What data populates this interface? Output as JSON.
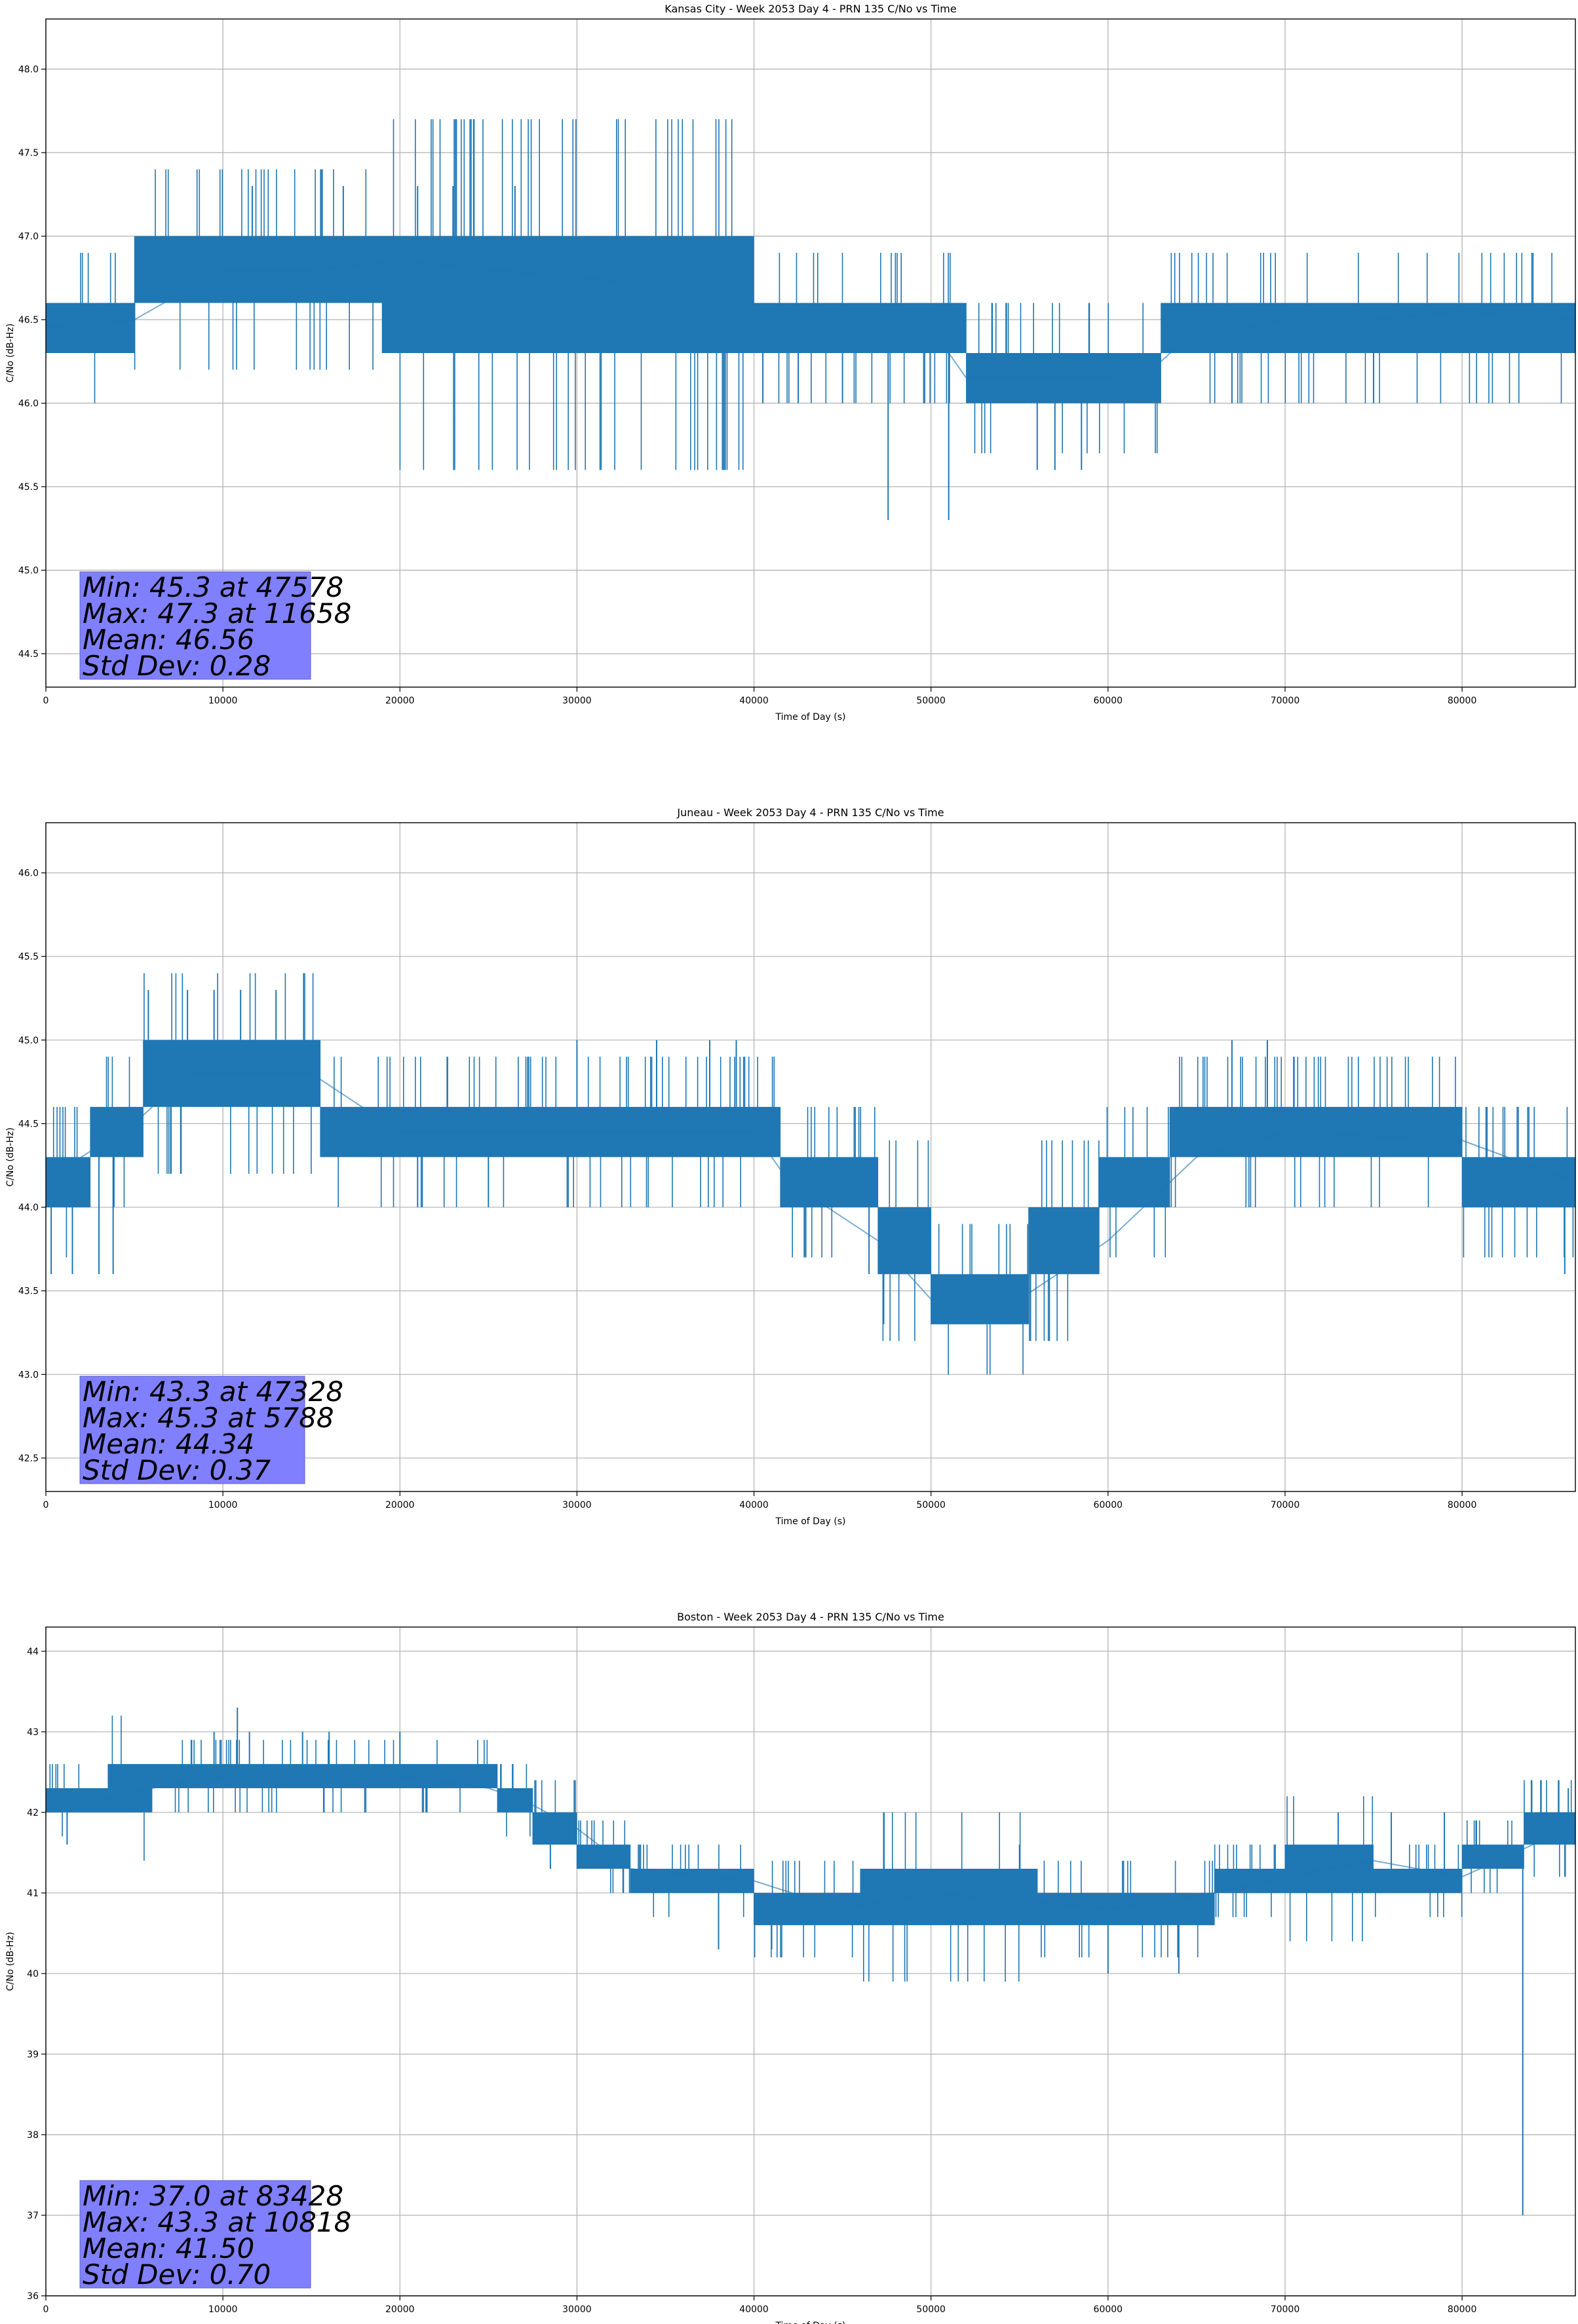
{
  "chart_data": [
    {
      "type": "line",
      "title": "Kansas City - Week 2053 Day 4 - PRN 135 C/No vs Time",
      "xlabel": "Time of Day (s)",
      "ylabel": "C/No (dB-Hz)",
      "xlim": [
        0,
        86400
      ],
      "ylim": [
        44.3,
        48.3
      ],
      "xticks": [
        0,
        10000,
        20000,
        30000,
        40000,
        50000,
        60000,
        70000,
        80000
      ],
      "yticks": [
        "44.5",
        "45.0",
        "45.5",
        "46.0",
        "46.5",
        "47.0",
        "47.5",
        "48.0"
      ],
      "grid": true,
      "color": "#1f77b4",
      "series": [
        {
          "name": "C/No",
          "x": [
            0,
            5000,
            10000,
            15000,
            20000,
            25000,
            30000,
            35000,
            40000,
            45000,
            50000,
            52000,
            55000,
            60000,
            63000,
            65000,
            68000,
            70000,
            75000,
            80000,
            86400
          ],
          "y": [
            46.45,
            46.5,
            46.8,
            46.8,
            46.85,
            46.8,
            46.75,
            46.7,
            46.45,
            46.45,
            46.45,
            46.15,
            46.15,
            46.15,
            46.25,
            46.45,
            46.45,
            46.5,
            46.5,
            46.55,
            46.5
          ]
        }
      ],
      "band": {
        "x": [
          0,
          5000,
          5001,
          19000,
          19001,
          40000,
          40001,
          52000,
          52001,
          63000,
          63001,
          86400
        ],
        "lo": [
          46.3,
          46.3,
          46.6,
          46.6,
          46.3,
          46.3,
          46.3,
          46.3,
          46.0,
          46.0,
          46.3,
          46.3
        ],
        "hi": [
          46.6,
          46.6,
          47.0,
          47.0,
          47.0,
          47.0,
          46.6,
          46.6,
          46.3,
          46.3,
          46.6,
          46.6
        ]
      },
      "spikes": [
        [
          47578,
          45.3
        ],
        [
          11658,
          47.3
        ],
        [
          51000,
          45.3
        ],
        [
          56000,
          45.6
        ],
        [
          57000,
          45.6
        ],
        [
          58500,
          45.6
        ],
        [
          21000,
          47.3
        ],
        [
          23000,
          47.3
        ],
        [
          26500,
          47.3
        ],
        [
          16800,
          47.3
        ],
        [
          40500,
          46.0
        ],
        [
          42500,
          46.0
        ],
        [
          45000,
          46.0
        ],
        [
          67000,
          46.0
        ],
        [
          75000,
          46.0
        ],
        [
          37000,
          46.3
        ],
        [
          29000,
          46.3
        ]
      ],
      "stats": [
        "Min: 45.3 at 47578",
        "Max: 47.3 at 11658",
        "Mean: 46.56",
        "Std Dev: 0.28"
      ]
    },
    {
      "type": "line",
      "title": "Juneau - Week 2053 Day 4 - PRN 135 C/No vs Time",
      "xlabel": "Time of Day (s)",
      "ylabel": "C/No (dB-Hz)",
      "xlim": [
        0,
        86400
      ],
      "ylim": [
        42.3,
        46.3
      ],
      "xticks": [
        0,
        10000,
        20000,
        30000,
        40000,
        50000,
        60000,
        70000,
        80000
      ],
      "yticks": [
        "42.5",
        "43.0",
        "43.5",
        "44.0",
        "44.5",
        "45.0",
        "45.5",
        "46.0"
      ],
      "grid": true,
      "color": "#1f77b4",
      "series": [
        {
          "name": "C/No",
          "x": [
            0,
            2000,
            5000,
            8000,
            15000,
            20000,
            30000,
            40000,
            42000,
            47000,
            50000,
            55000,
            60000,
            65000,
            70000,
            80000,
            86400
          ],
          "y": [
            44.15,
            44.3,
            44.5,
            44.8,
            44.8,
            44.45,
            44.45,
            44.45,
            44.15,
            43.8,
            43.45,
            43.45,
            43.8,
            44.3,
            44.45,
            44.4,
            44.15
          ]
        }
      ],
      "band": {
        "x": [
          0,
          2500,
          2501,
          5500,
          5501,
          15500,
          15501,
          41500,
          41501,
          47000,
          47001,
          50000,
          50001,
          55500,
          55501,
          59500,
          59501,
          63500,
          63501,
          80000,
          80001,
          86400
        ],
        "lo": [
          44.0,
          44.0,
          44.3,
          44.3,
          44.6,
          44.6,
          44.3,
          44.3,
          44.0,
          44.0,
          43.6,
          43.6,
          43.3,
          43.3,
          43.6,
          43.6,
          44.0,
          44.0,
          44.3,
          44.3,
          44.0,
          44.0
        ],
        "hi": [
          44.3,
          44.3,
          44.6,
          44.6,
          45.0,
          45.0,
          44.6,
          44.6,
          44.3,
          44.3,
          44.0,
          44.0,
          43.6,
          43.6,
          44.0,
          44.0,
          44.3,
          44.3,
          44.6,
          44.6,
          44.3,
          44.3
        ]
      },
      "spikes": [
        [
          47328,
          43.3
        ],
        [
          5788,
          45.3
        ],
        [
          8000,
          45.3
        ],
        [
          9500,
          45.3
        ],
        [
          11000,
          45.3
        ],
        [
          13000,
          45.3
        ],
        [
          300,
          43.6
        ],
        [
          1500,
          43.6
        ],
        [
          3000,
          43.6
        ],
        [
          3800,
          43.6
        ],
        [
          85800,
          43.6
        ],
        [
          46500,
          43.6
        ],
        [
          30000,
          45.0
        ],
        [
          34500,
          45.0
        ],
        [
          37500,
          45.0
        ],
        [
          39000,
          45.0
        ],
        [
          67000,
          45.0
        ],
        [
          69000,
          45.0
        ],
        [
          21000,
          44.0
        ],
        [
          25000,
          44.0
        ]
      ],
      "stats": [
        "Min: 43.3 at 47328",
        "Max: 45.3 at 5788",
        "Mean: 44.34",
        "Std Dev: 0.37"
      ]
    },
    {
      "type": "line",
      "title": "Boston - Week 2053 Day 4 - PRN 135 C/No vs Time",
      "xlabel": "Time of Day (s)",
      "ylabel": "C/No (dB-Hz)",
      "xlim": [
        0,
        86400
      ],
      "ylim": [
        36,
        44.3
      ],
      "xticks": [
        0,
        10000,
        20000,
        30000,
        40000,
        50000,
        60000,
        70000,
        80000
      ],
      "yticks": [
        "36",
        "37",
        "38",
        "39",
        "40",
        "41",
        "42",
        "43",
        "44"
      ],
      "grid": true,
      "color": "#1f77b4",
      "series": [
        {
          "name": "C/No",
          "x": [
            0,
            3000,
            6000,
            10000,
            20000,
            25000,
            27000,
            30000,
            33000,
            40000,
            45000,
            50000,
            60000,
            66000,
            70000,
            75000,
            80000,
            84000,
            86400
          ],
          "y": [
            42.15,
            42.15,
            42.3,
            42.45,
            42.45,
            42.3,
            42.15,
            41.8,
            41.3,
            41.15,
            40.8,
            41.0,
            40.8,
            41.0,
            41.2,
            41.4,
            41.2,
            41.6,
            42.0
          ]
        }
      ],
      "band": {
        "x": [
          0,
          3500,
          3501,
          6000,
          6001,
          22500,
          22501,
          25500,
          25501,
          27500,
          27501,
          30000,
          30001,
          33000,
          33001,
          40000,
          40001,
          46000,
          46001,
          50000,
          50001,
          56000,
          56001,
          66000,
          66001,
          70000,
          70001,
          75000,
          75001,
          80000,
          80001,
          83500,
          83501,
          86400
        ],
        "lo": [
          42.0,
          42.0,
          42.0,
          42.0,
          42.3,
          42.3,
          42.3,
          42.3,
          42.0,
          42.0,
          41.6,
          41.6,
          41.3,
          41.3,
          41.0,
          41.0,
          40.6,
          40.6,
          40.6,
          40.6,
          40.6,
          40.6,
          40.6,
          40.6,
          41.0,
          41.0,
          41.0,
          41.0,
          41.0,
          41.0,
          41.3,
          41.3,
          41.6,
          41.6
        ],
        "hi": [
          42.3,
          42.3,
          42.6,
          42.6,
          42.6,
          42.6,
          42.6,
          42.6,
          42.3,
          42.3,
          42.0,
          42.0,
          41.6,
          41.6,
          41.3,
          41.3,
          41.0,
          41.0,
          41.3,
          41.3,
          41.3,
          41.3,
          41.0,
          41.0,
          41.3,
          41.3,
          41.6,
          41.6,
          41.3,
          41.3,
          41.6,
          41.6,
          42.0,
          42.0
        ]
      },
      "spikes": [
        [
          83428,
          37.0
        ],
        [
          10818,
          43.3
        ],
        [
          1200,
          41.6
        ],
        [
          9500,
          43.0
        ],
        [
          11500,
          43.0
        ],
        [
          14500,
          43.0
        ],
        [
          16000,
          43.0
        ],
        [
          20000,
          43.0
        ],
        [
          28500,
          41.3
        ],
        [
          60000,
          40.0
        ],
        [
          64000,
          40.0
        ],
        [
          38000,
          40.3
        ],
        [
          41000,
          40.3
        ],
        [
          55000,
          41.6
        ],
        [
          73000,
          42.0
        ],
        [
          76000,
          42.0
        ],
        [
          79000,
          42.0
        ],
        [
          86000,
          42.3
        ]
      ],
      "stats": [
        "Min: 37.0 at 83428",
        "Max: 43.3 at 10818",
        "Mean: 41.50",
        "Std Dev: 0.70"
      ]
    }
  ]
}
